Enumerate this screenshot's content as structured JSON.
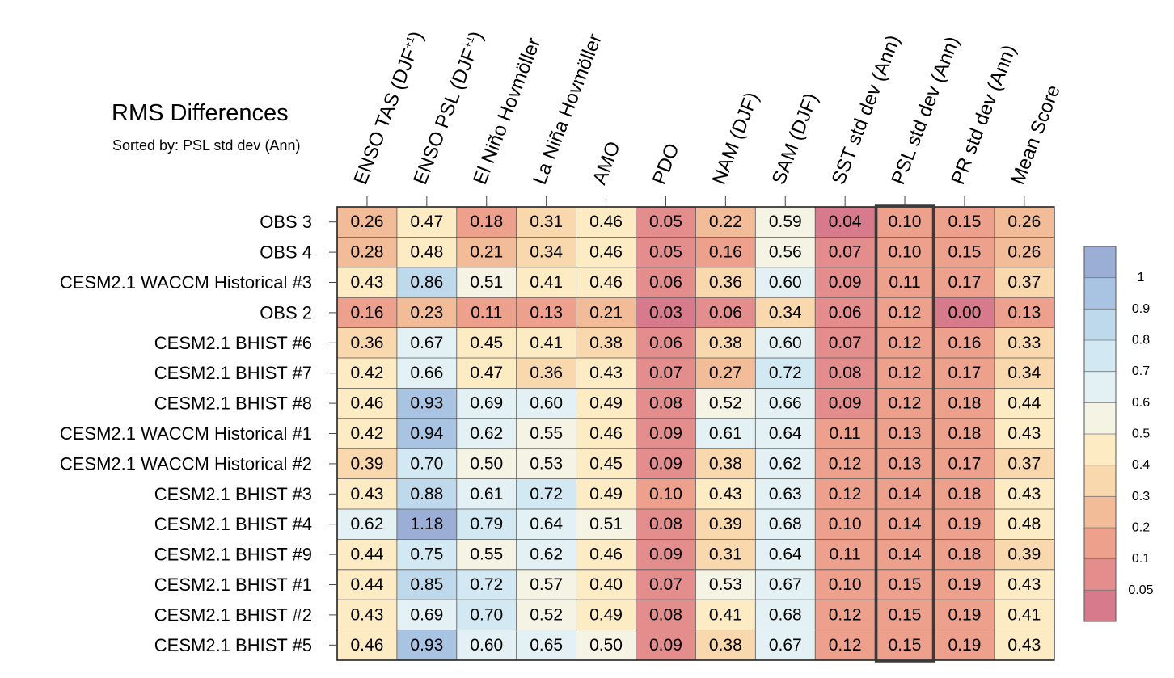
{
  "chart_data": {
    "type": "heatmap",
    "title": "RMS Differences",
    "subtitle": "Sorted by: PSL std dev (Ann)",
    "highlight_column": "PSL std dev (Ann)",
    "columns": [
      {
        "base": "ENSO TAS (DJF",
        "sup": "+1",
        "tail": ")"
      },
      {
        "base": "ENSO PSL (DJF",
        "sup": "+1",
        "tail": ")"
      },
      {
        "base": "El Niño Hovmöller"
      },
      {
        "base": "La Niña Hovmöller"
      },
      {
        "base": "AMO"
      },
      {
        "base": "PDO"
      },
      {
        "base": "NAM (DJF)"
      },
      {
        "base": "SAM (DJF)"
      },
      {
        "base": "SST std dev (Ann)"
      },
      {
        "base": "PSL std dev (Ann)"
      },
      {
        "base": "PR std dev (Ann)"
      },
      {
        "base": "Mean Score"
      }
    ],
    "rows": [
      "OBS 3",
      "OBS 4",
      "CESM2.1 WACCM Historical #3",
      "OBS 2",
      "CESM2.1 BHIST #6",
      "CESM2.1 BHIST #7",
      "CESM2.1 BHIST #8",
      "CESM2.1 WACCM Historical #1",
      "CESM2.1 WACCM Historical #2",
      "CESM2.1 BHIST #3",
      "CESM2.1 BHIST #4",
      "CESM2.1 BHIST #9",
      "CESM2.1 BHIST #1",
      "CESM2.1 BHIST #2",
      "CESM2.1 BHIST #5"
    ],
    "values": [
      [
        "0.26",
        "0.47",
        "0.18",
        "0.31",
        "0.46",
        "0.05",
        "0.22",
        "0.59",
        "0.04",
        "0.10",
        "0.15",
        "0.26"
      ],
      [
        "0.28",
        "0.48",
        "0.21",
        "0.34",
        "0.46",
        "0.05",
        "0.16",
        "0.56",
        "0.07",
        "0.10",
        "0.15",
        "0.26"
      ],
      [
        "0.43",
        "0.86",
        "0.51",
        "0.41",
        "0.46",
        "0.06",
        "0.36",
        "0.60",
        "0.09",
        "0.11",
        "0.17",
        "0.37"
      ],
      [
        "0.16",
        "0.23",
        "0.11",
        "0.13",
        "0.21",
        "0.03",
        "0.06",
        "0.34",
        "0.06",
        "0.12",
        "0.00",
        "0.13"
      ],
      [
        "0.36",
        "0.67",
        "0.45",
        "0.41",
        "0.38",
        "0.06",
        "0.38",
        "0.60",
        "0.07",
        "0.12",
        "0.16",
        "0.33"
      ],
      [
        "0.42",
        "0.66",
        "0.47",
        "0.36",
        "0.43",
        "0.07",
        "0.27",
        "0.72",
        "0.08",
        "0.12",
        "0.17",
        "0.34"
      ],
      [
        "0.46",
        "0.93",
        "0.69",
        "0.60",
        "0.49",
        "0.08",
        "0.52",
        "0.66",
        "0.09",
        "0.12",
        "0.18",
        "0.44"
      ],
      [
        "0.42",
        "0.94",
        "0.62",
        "0.55",
        "0.46",
        "0.09",
        "0.61",
        "0.64",
        "0.11",
        "0.13",
        "0.18",
        "0.43"
      ],
      [
        "0.39",
        "0.70",
        "0.50",
        "0.53",
        "0.45",
        "0.09",
        "0.38",
        "0.62",
        "0.12",
        "0.13",
        "0.17",
        "0.37"
      ],
      [
        "0.43",
        "0.88",
        "0.61",
        "0.72",
        "0.49",
        "0.10",
        "0.43",
        "0.63",
        "0.12",
        "0.14",
        "0.18",
        "0.43"
      ],
      [
        "0.62",
        "1.18",
        "0.79",
        "0.64",
        "0.51",
        "0.08",
        "0.39",
        "0.68",
        "0.10",
        "0.14",
        "0.19",
        "0.48"
      ],
      [
        "0.44",
        "0.75",
        "0.55",
        "0.62",
        "0.46",
        "0.09",
        "0.31",
        "0.64",
        "0.11",
        "0.14",
        "0.18",
        "0.39"
      ],
      [
        "0.44",
        "0.85",
        "0.72",
        "0.57",
        "0.40",
        "0.07",
        "0.53",
        "0.67",
        "0.10",
        "0.15",
        "0.19",
        "0.43"
      ],
      [
        "0.43",
        "0.69",
        "0.70",
        "0.52",
        "0.49",
        "0.08",
        "0.41",
        "0.68",
        "0.12",
        "0.15",
        "0.19",
        "0.41"
      ],
      [
        "0.46",
        "0.93",
        "0.60",
        "0.65",
        "0.50",
        "0.09",
        "0.38",
        "0.67",
        "0.12",
        "0.15",
        "0.19",
        "0.43"
      ]
    ],
    "colorbar": {
      "thresholds": [
        0.05,
        0.1,
        0.2,
        0.3,
        0.4,
        0.5,
        0.6,
        0.7,
        0.8,
        0.9,
        1
      ],
      "labels": [
        "0.05",
        "0.1",
        "0.2",
        "0.3",
        "0.4",
        "0.5",
        "0.6",
        "0.7",
        "0.8",
        "0.9",
        "1"
      ],
      "colors": [
        "#d77a8c",
        "#e48d8d",
        "#eda08c",
        "#f3bc98",
        "#f9d8ae",
        "#fcebc3",
        "#f4f3e4",
        "#e3f1f4",
        "#d2e8f2",
        "#bed9ec",
        "#a9c4e3",
        "#9bafd6"
      ]
    }
  }
}
